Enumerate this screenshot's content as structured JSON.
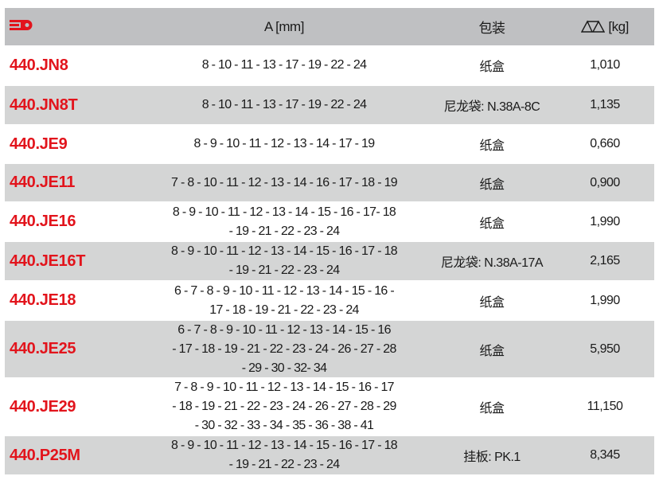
{
  "header": {
    "logo_icon": "red-wrench-logo-icon",
    "brand_color": "#e2141c",
    "col_a": "A [mm]",
    "col_pack": "包装",
    "weight_icon": "balance-scale-icon",
    "col_weight": "[kg]"
  },
  "rows": [
    {
      "code": "440.JN8",
      "sizes": [
        "8 - 10 - 11 - 13 - 17 - 19 - 22 - 24"
      ],
      "pack": "纸盒",
      "weight": "1,010"
    },
    {
      "code": "440.JN8T",
      "sizes": [
        "8 - 10 - 11 - 13 - 17 - 19 - 22 - 24"
      ],
      "pack": "尼龙袋: N.38A-8C",
      "weight": "1,135"
    },
    {
      "code": "440.JE9",
      "sizes": [
        "8 - 9 - 10 - 11 - 12 - 13 - 14 - 17 - 19"
      ],
      "pack": "纸盒",
      "weight": "0,660"
    },
    {
      "code": "440.JE11",
      "sizes": [
        "7 - 8 - 10 - 11 - 12 - 13 - 14 - 16 - 17 - 18 - 19"
      ],
      "pack": "纸盒",
      "weight": "0,900"
    },
    {
      "code": "440.JE16",
      "sizes": [
        "8 - 9 - 10 - 11 - 12 - 13 - 14 - 15 - 16 - 17- 18",
        "- 19 - 21 - 22 - 23 - 24"
      ],
      "pack": "纸盒",
      "weight": "1,990"
    },
    {
      "code": "440.JE16T",
      "sizes": [
        "8 - 9 - 10 - 11 - 12 - 13 - 14 - 15 - 16 - 17 - 18",
        "- 19 - 21 - 22 - 23 - 24"
      ],
      "pack": "尼龙袋: N.38A-17A",
      "weight": "2,165"
    },
    {
      "code": "440.JE18",
      "sizes": [
        "6 - 7 - 8 - 9 - 10 - 11 - 12 - 13 - 14 - 15 - 16 -",
        "17 - 18 - 19 - 21 - 22 - 23 - 24"
      ],
      "pack": "纸盒",
      "weight": "1,990"
    },
    {
      "code": "440.JE25",
      "sizes": [
        "6 - 7 - 8 - 9 - 10 - 11 - 12 - 13 - 14 - 15 - 16",
        "- 17 - 18 - 19 - 21 - 22 - 23 - 24 - 26 - 27 - 28",
        "- 29 - 30 - 32- 34"
      ],
      "pack": "纸盒",
      "weight": "5,950"
    },
    {
      "code": "440.JE29",
      "sizes": [
        "7 - 8 - 9 - 10 - 11 - 12 - 13 - 14 - 15 - 16 - 17",
        "- 18 - 19 - 21 - 22 - 23 - 24 - 26 - 27 - 28 - 29",
        "- 30 - 32 - 33 - 34 - 35 - 36 - 38 - 41"
      ],
      "pack": "纸盒",
      "weight": "11,150"
    },
    {
      "code": "440.P25M",
      "sizes": [
        "8 - 9 - 10 - 11 - 12 - 13 - 14 - 15 - 16 - 17 - 18",
        "- 19 - 21 - 22 - 23 - 24"
      ],
      "pack": "挂板: PK.1",
      "weight": "8,345"
    }
  ]
}
